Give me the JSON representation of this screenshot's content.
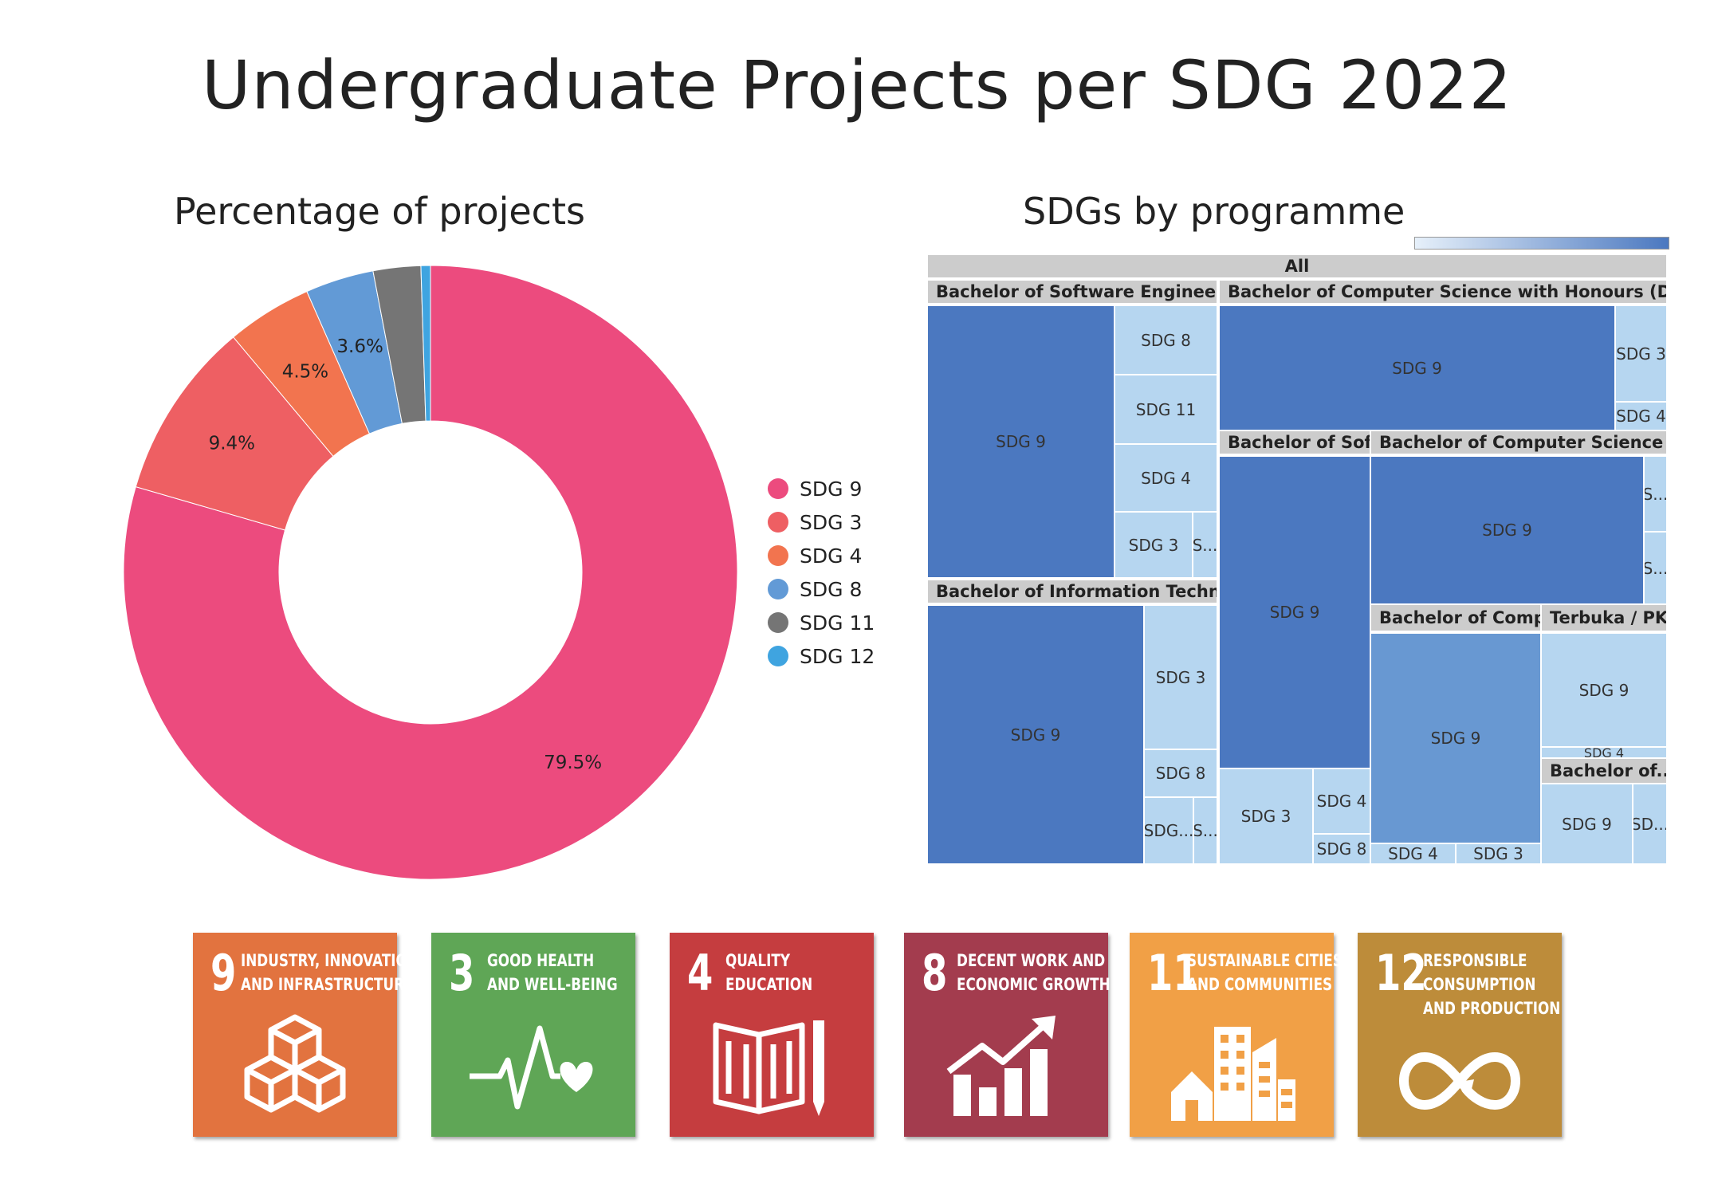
{
  "title": "Undergraduate Projects per SDG 2022",
  "chart_data": [
    {
      "type": "pie",
      "variant": "donut",
      "title": "Percentage of projects",
      "categories": [
        "SDG 9",
        "SDG 3",
        "SDG 4",
        "SDG 8",
        "SDG 11",
        "SDG 12"
      ],
      "values": [
        79.5,
        9.4,
        4.5,
        3.6,
        2.5,
        0.5
      ],
      "data_labels": [
        "79.5%",
        "9.4%",
        "4.5%",
        "3.6%",
        "",
        ""
      ],
      "colors": [
        "#ec4b7e",
        "#ee5f63",
        "#f2744f",
        "#629ad6",
        "#757575",
        "#3fa4e0"
      ],
      "legend_position": "right"
    },
    {
      "type": "treemap",
      "title": "SDGs by programme",
      "root": "All",
      "colors": {
        "dark": "#4b78c0",
        "medium": "#6898d2",
        "light": "#b6d6f0"
      },
      "groups": [
        {
          "label": "Bachelor of Software Engineerin...",
          "cells": [
            {
              "label": "SDG 9"
            },
            {
              "label": "SDG 8"
            },
            {
              "label": "SDG 11"
            },
            {
              "label": "SDG 4"
            },
            {
              "label": "SDG 3"
            },
            {
              "label": "S..."
            }
          ]
        },
        {
          "label": "Bachelor of Information Technol...",
          "cells": [
            {
              "label": "SDG 9"
            },
            {
              "label": "SDG 3"
            },
            {
              "label": "SDG 8"
            },
            {
              "label": "SDG..."
            },
            {
              "label": "S..."
            }
          ]
        },
        {
          "label": "Bachelor of Computer Science with Honours (Data S...",
          "cells": [
            {
              "label": "SDG 9"
            },
            {
              "label": "SDG 3"
            },
            {
              "label": "SDG 4"
            }
          ]
        },
        {
          "label": "Bachelor of Soft...",
          "cells": [
            {
              "label": "SDG 9"
            },
            {
              "label": "SDG 3"
            },
            {
              "label": "SDG 4"
            },
            {
              "label": "SDG 8"
            }
          ]
        },
        {
          "label": "Bachelor of Computer Science wi...",
          "cells": [
            {
              "label": "SDG 9"
            },
            {
              "label": "S..."
            },
            {
              "label": "S..."
            }
          ]
        },
        {
          "label": "Bachelor of Comp...",
          "cells": [
            {
              "label": "SDG 9"
            },
            {
              "label": "SDG 4"
            },
            {
              "label": "SDG 3"
            }
          ]
        },
        {
          "label": "Terbuka / PKP",
          "cells": [
            {
              "label": "SDG 9"
            },
            {
              "label": "SDG 4"
            }
          ]
        },
        {
          "label": "Bachelor of...",
          "cells": [
            {
              "label": "SDG 9"
            },
            {
              "label": "SD..."
            }
          ]
        }
      ]
    }
  ],
  "sdg_tiles": [
    {
      "number": "9",
      "text": "INDUSTRY, INNOVATION\nAND INFRASTRUCTURE",
      "color": "#e2733f",
      "icon": "cubes-icon"
    },
    {
      "number": "3",
      "text": "GOOD HEALTH\nAND WELL-BEING",
      "color": "#5fa656",
      "icon": "heartbeat-icon"
    },
    {
      "number": "4",
      "text": "QUALITY\nEDUCATION",
      "color": "#c53d3f",
      "icon": "book-pencil-icon"
    },
    {
      "number": "8",
      "text": "DECENT WORK AND\nECONOMIC GROWTH",
      "color": "#a33c4e",
      "icon": "growth-chart-icon"
    },
    {
      "number": "11",
      "text": "SUSTAINABLE CITIES\nAND COMMUNITIES",
      "color": "#f1a046",
      "icon": "city-icon"
    },
    {
      "number": "12",
      "text": "RESPONSIBLE\nCONSUMPTION\nAND PRODUCTION",
      "color": "#bd8c3a",
      "icon": "infinity-icon"
    }
  ]
}
